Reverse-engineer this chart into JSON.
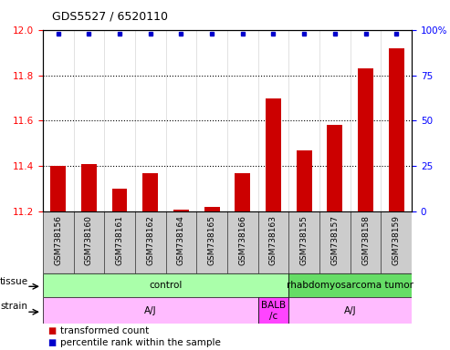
{
  "title": "GDS5527 / 6520110",
  "samples": [
    "GSM738156",
    "GSM738160",
    "GSM738161",
    "GSM738162",
    "GSM738164",
    "GSM738165",
    "GSM738166",
    "GSM738163",
    "GSM738155",
    "GSM738157",
    "GSM738158",
    "GSM738159"
  ],
  "bar_values": [
    11.4,
    11.41,
    11.3,
    11.37,
    11.21,
    11.22,
    11.37,
    11.7,
    11.47,
    11.58,
    11.83,
    11.92
  ],
  "dot_values": [
    98,
    98,
    98,
    98,
    98,
    98,
    98,
    98,
    98,
    98,
    98,
    98
  ],
  "ylim_left": [
    11.2,
    12.0
  ],
  "ylim_right": [
    0,
    100
  ],
  "yticks_left": [
    11.2,
    11.4,
    11.6,
    11.8,
    12.0
  ],
  "yticks_right": [
    0,
    25,
    50,
    75,
    100
  ],
  "bar_color": "#cc0000",
  "dot_color": "#0000cc",
  "tissue_groups": [
    {
      "label": "control",
      "start": 0,
      "end": 8,
      "color": "#aaffaa"
    },
    {
      "label": "rhabdomyosarcoma tumor",
      "start": 8,
      "end": 12,
      "color": "#66dd66"
    }
  ],
  "strain_groups": [
    {
      "label": "A/J",
      "start": 0,
      "end": 7,
      "color": "#ffbbff"
    },
    {
      "label": "BALB\n/c",
      "start": 7,
      "end": 8,
      "color": "#ff44ff"
    },
    {
      "label": "A/J",
      "start": 8,
      "end": 12,
      "color": "#ffbbff"
    }
  ],
  "tissue_row_label": "tissue",
  "strain_row_label": "strain",
  "legend_bar_label": "transformed count",
  "legend_dot_label": "percentile rank within the sample",
  "grid_yticks": [
    11.4,
    11.6,
    11.8
  ],
  "xticklabel_fontsize": 6.5,
  "yticklabel_fontsize": 7.5,
  "title_fontsize": 9,
  "label_fontsize": 7.5,
  "row_label_fontsize": 7.5,
  "legend_fontsize": 7.5,
  "bar_width": 0.5,
  "xtick_area_color": "#cccccc",
  "white_bg": "#ffffff"
}
